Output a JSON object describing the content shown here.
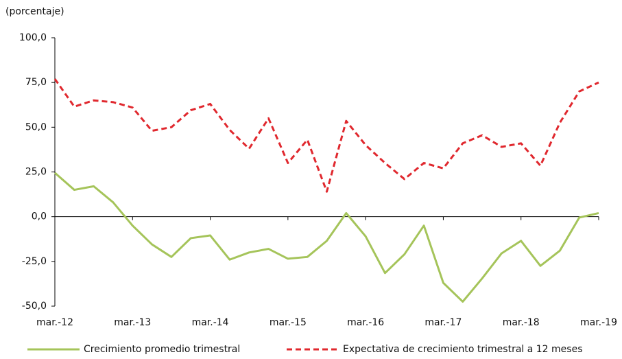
{
  "chart_data": {
    "type": "line",
    "y_unit_label": "(porcentaje)",
    "categories": [
      "mar.-12",
      null,
      null,
      null,
      "mar.-13",
      null,
      null,
      null,
      "mar.-14",
      null,
      null,
      null,
      "mar.-15",
      null,
      null,
      null,
      "mar.-16",
      null,
      null,
      null,
      "mar.-17",
      null,
      null,
      null,
      "mar.-18",
      null,
      null,
      null,
      "mar.-19"
    ],
    "series": [
      {
        "name": "Crecimiento promedio trimestral",
        "color": "#a5c45a",
        "dash": false,
        "values": [
          24.5,
          15,
          17,
          8,
          -5,
          -15.5,
          -22.5,
          -12,
          -10.5,
          -24,
          -20,
          -18,
          -23.5,
          -22.5,
          -13.5,
          2,
          -11,
          -31.5,
          -21,
          -5,
          -37,
          -47.5,
          -34.5,
          -20.5,
          -13.5,
          -27.5,
          -19,
          -0.5,
          2
        ]
      },
      {
        "name": "Expectativa de crecimiento trimestral a 12 meses",
        "color": "#e0282e",
        "dash": true,
        "values": [
          77,
          61.5,
          65,
          64,
          61,
          48,
          50,
          59.5,
          63,
          48.5,
          38,
          55,
          30,
          43,
          14,
          53.5,
          40,
          30,
          21,
          30,
          27,
          41,
          45.5,
          39,
          41,
          28.5,
          52.5,
          70,
          75
        ]
      }
    ],
    "ylim": [
      -50,
      100
    ],
    "yticks": [
      {
        "value": -50,
        "label": "-50,0"
      },
      {
        "value": -25,
        "label": "-25,0"
      },
      {
        "value": 0,
        "label": "0,0"
      },
      {
        "value": 25,
        "label": "25,0"
      },
      {
        "value": 50,
        "label": "50,0"
      },
      {
        "value": 75,
        "label": "75,0"
      },
      {
        "value": 100,
        "label": "100,0"
      }
    ],
    "legend": "bottom"
  }
}
